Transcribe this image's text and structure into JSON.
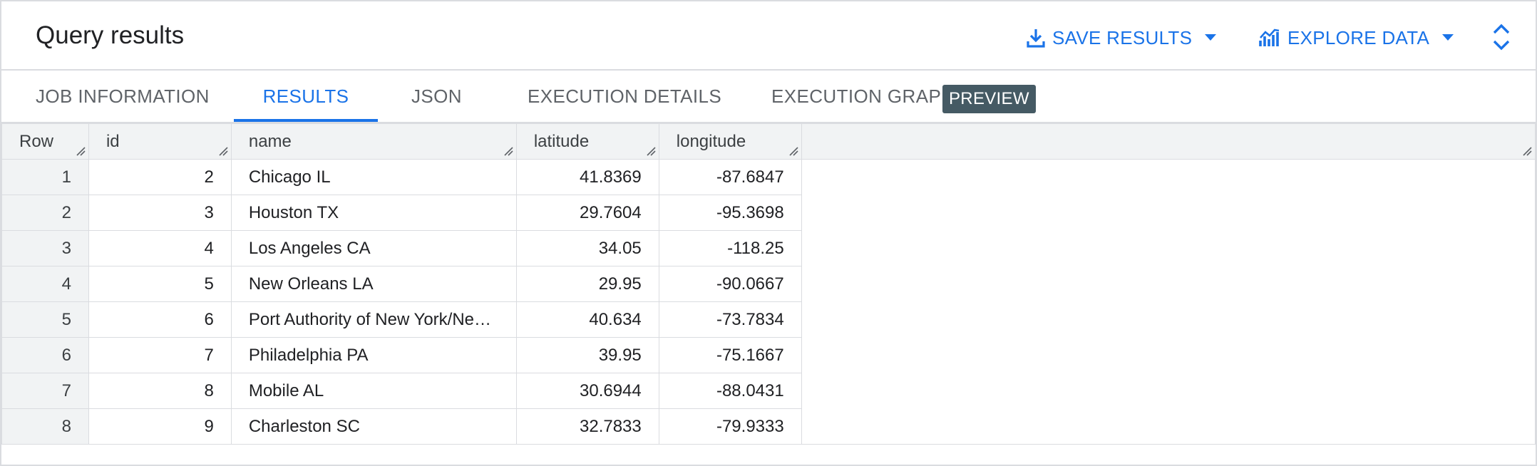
{
  "header": {
    "title": "Query results",
    "save_results_label": "SAVE RESULTS",
    "explore_data_label": "EXPLORE DATA",
    "accent_color": "#1a73e8"
  },
  "tabs": [
    {
      "label": "JOB INFORMATION"
    },
    {
      "label": "RESULTS",
      "active": true
    },
    {
      "label": "JSON"
    },
    {
      "label": "EXECUTION DETAILS"
    },
    {
      "label": "EXECUTION GRAPH"
    }
  ],
  "badge": "PREVIEW",
  "table": {
    "columns": [
      "Row",
      "id",
      "name",
      "latitude",
      "longitude"
    ],
    "rows": [
      {
        "row": "1",
        "id": "2",
        "name": "Chicago IL",
        "latitude": "41.8369",
        "longitude": "-87.6847"
      },
      {
        "row": "2",
        "id": "3",
        "name": "Houston TX",
        "latitude": "29.7604",
        "longitude": "-95.3698"
      },
      {
        "row": "3",
        "id": "4",
        "name": "Los Angeles CA",
        "latitude": "34.05",
        "longitude": "-118.25"
      },
      {
        "row": "4",
        "id": "5",
        "name": "New Orleans LA",
        "latitude": "29.95",
        "longitude": "-90.0667"
      },
      {
        "row": "5",
        "id": "6",
        "name": "Port Authority of New York/Ne…",
        "latitude": "40.634",
        "longitude": "-73.7834"
      },
      {
        "row": "6",
        "id": "7",
        "name": "Philadelphia PA",
        "latitude": "39.95",
        "longitude": "-75.1667"
      },
      {
        "row": "7",
        "id": "8",
        "name": "Mobile AL",
        "latitude": "30.6944",
        "longitude": "-88.0431"
      },
      {
        "row": "8",
        "id": "9",
        "name": "Charleston SC",
        "latitude": "32.7833",
        "longitude": "-79.9333"
      }
    ]
  }
}
